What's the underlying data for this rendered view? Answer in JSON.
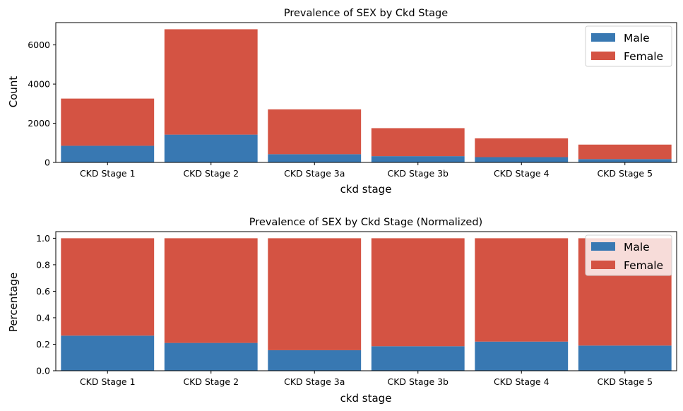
{
  "chart_data": [
    {
      "type": "bar",
      "stacked": true,
      "title": "Prevalence of SEX by Ckd Stage",
      "xlabel": "ckd stage",
      "ylabel": "Count",
      "categories": [
        "CKD Stage 1",
        "CKD Stage 2",
        "CKD Stage 3a",
        "CKD Stage 3b",
        "CKD Stage 4",
        "CKD Stage 5"
      ],
      "series": [
        {
          "name": "Male",
          "color": "#3878b2",
          "values": [
            850,
            1420,
            420,
            320,
            270,
            170
          ]
        },
        {
          "name": "Female",
          "color": "#d45343",
          "values": [
            2410,
            5380,
            2290,
            1430,
            960,
            740
          ]
        }
      ],
      "ylim": [
        0,
        7140
      ],
      "yticks": [
        0,
        2000,
        4000,
        6000
      ],
      "ytick_labels": [
        "0",
        "2000",
        "4000",
        "6000"
      ],
      "grid": false,
      "legend_position": "top-right"
    },
    {
      "type": "bar",
      "stacked": true,
      "title": "Prevalence of SEX by Ckd Stage (Normalized)",
      "xlabel": "ckd stage",
      "ylabel": "Percentage",
      "categories": [
        "CKD Stage 1",
        "CKD Stage 2",
        "CKD Stage 3a",
        "CKD Stage 3b",
        "CKD Stage 4",
        "CKD Stage 5"
      ],
      "series": [
        {
          "name": "Male",
          "color": "#3878b2",
          "values": [
            0.265,
            0.21,
            0.155,
            0.185,
            0.22,
            0.19
          ]
        },
        {
          "name": "Female",
          "color": "#d45343",
          "values": [
            0.735,
            0.79,
            0.845,
            0.815,
            0.78,
            0.81
          ]
        }
      ],
      "ylim": [
        0,
        1.05
      ],
      "yticks": [
        0,
        0.2,
        0.4,
        0.6,
        0.8,
        1.0
      ],
      "ytick_labels": [
        "0.0",
        "0.2",
        "0.4",
        "0.6",
        "0.8",
        "1.0"
      ],
      "grid": false,
      "legend_position": "top-right"
    }
  ]
}
